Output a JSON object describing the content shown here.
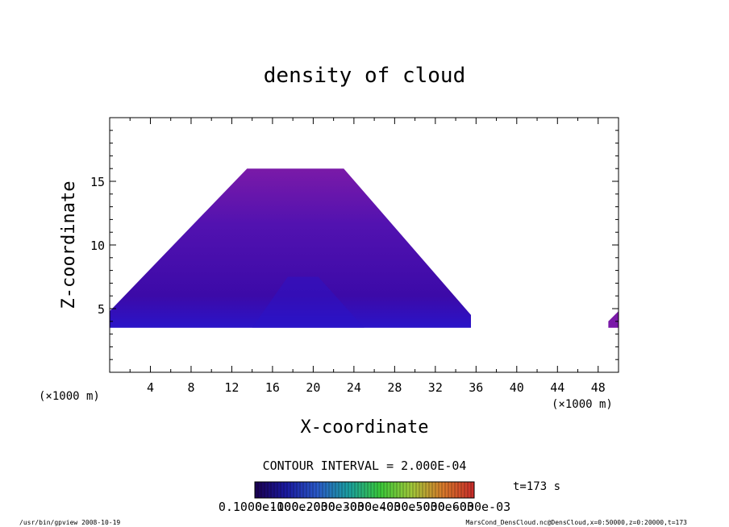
{
  "chart_data": {
    "type": "heatmap",
    "title": "density of cloud",
    "xlabel": "X-coordinate",
    "ylabel": "Z-coordinate",
    "x_unit": "(×1000 m)",
    "y_unit": "(×1000 m)",
    "xlim": [
      0,
      50
    ],
    "ylim": [
      0,
      20
    ],
    "x_ticks": [
      "4",
      "8",
      "12",
      "16",
      "20",
      "24",
      "28",
      "32",
      "36",
      "40",
      "44",
      "48"
    ],
    "y_ticks": [
      "5",
      "10",
      "15"
    ],
    "cloud_region": {
      "base_z": 3.5,
      "top_z": 16,
      "base_x": [
        0,
        35.5
      ],
      "top_x": [
        13.5,
        23
      ],
      "fringe_x": [
        49,
        50
      ]
    },
    "contour_interval": "CONTOUR INTERVAL = 2.000E-04",
    "colorbar_labels": [
      "0.1000e-10",
      "0.1000e-03",
      "0.2000e-03",
      "0.3000e-03",
      "0.4000e-03",
      "0.5000e-03",
      "0.6000e-03"
    ],
    "colorbar_colors": [
      "#1a0050",
      "#1a1aa0",
      "#2a5ac8",
      "#1aa0a0",
      "#3ac83a",
      "#a0c83a",
      "#d87a2a",
      "#c82a2a"
    ],
    "cloud_colors": {
      "core": "#3c0aa8",
      "mid": "#5212b0",
      "edge": "#7a1aa8",
      "base": "#2a14c8"
    },
    "time_label": "t=173 s",
    "footer_left": "/usr/bin/gpview   2008-10-19",
    "footer_right": "MarsCond_DensCloud.nc@DensCloud,x=0:50000,z=0:20000,t=173"
  }
}
